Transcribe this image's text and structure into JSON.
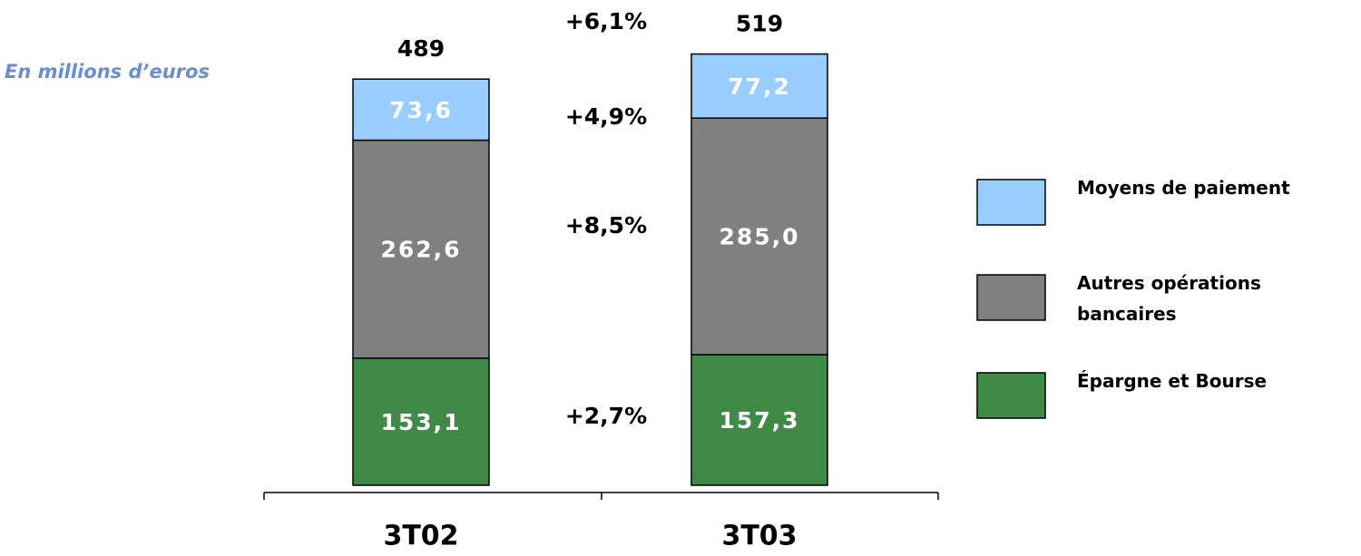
{
  "chart_data": {
    "type": "stacked_bar",
    "subtitle": "En millions d’euros",
    "categories": [
      "3T02",
      "3T03"
    ],
    "series": [
      {
        "name": "Épargne et Bourse",
        "color": "#3f8a47",
        "values": [
          153.1,
          157.3
        ],
        "value_labels": [
          "153,1",
          "157,3"
        ],
        "change": "+2,7%"
      },
      {
        "name": "Autres opérations bancaires",
        "color": "#808080",
        "values": [
          262.6,
          285.0
        ],
        "value_labels": [
          "262,6",
          "285,0"
        ],
        "change": "+8,5%"
      },
      {
        "name": "Moyens de paiement",
        "color": "#99ccff",
        "values": [
          73.6,
          77.2
        ],
        "value_labels": [
          "73,6",
          "77,2"
        ],
        "change": "+4,9%"
      }
    ],
    "totals": [
      489,
      519
    ],
    "total_change": "+6,1%"
  }
}
